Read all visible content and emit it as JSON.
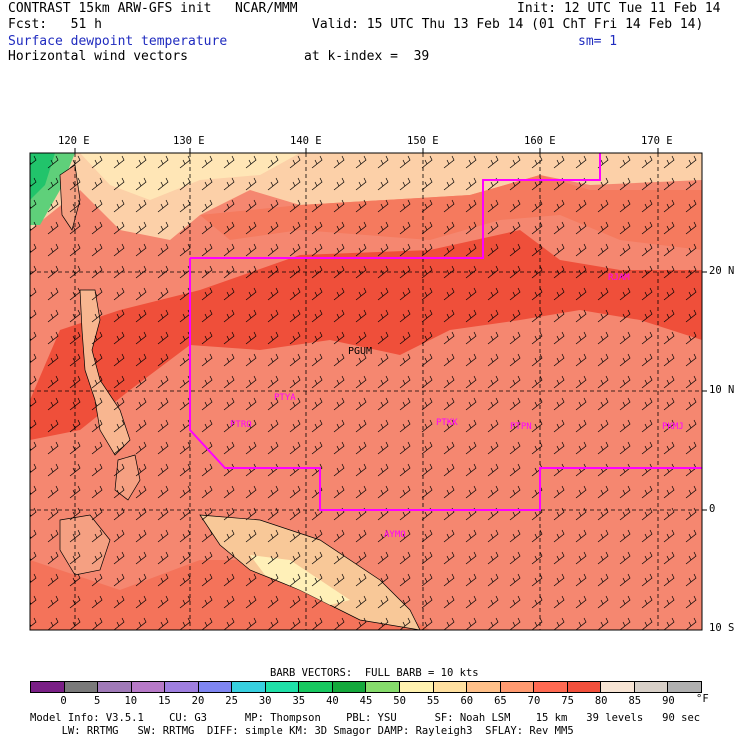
{
  "header": {
    "line1_left": "CONTRAST 15km ARW-GFS init   NCAR/MMM",
    "line1_right": "Init: 12 UTC Tue 11 Feb 14",
    "line2_left": "Fcst:   51 h",
    "line2_right": "Valid: 15 UTC Thu 13 Feb 14 (01 ChT Fri 14 Feb 14)",
    "line3_left": "Surface dewpoint temperature",
    "line3_right": "sm= 1",
    "line4_left": "Horizontal wind vectors",
    "line4_mid": "at k-index =  39"
  },
  "axes": {
    "lon_labels": [
      "120 E",
      "130 E",
      "140 E",
      "150 E",
      "160 E",
      "170 E"
    ],
    "lat_labels": [
      "20 N",
      "10 N",
      "0",
      "10 S"
    ]
  },
  "stations": [
    "RJAM",
    "PGUM",
    "PTYA",
    "PTRO",
    "PTKK",
    "PTPN",
    "PKMJ",
    "AYMO"
  ],
  "barb_caption": "BARB VECTORS:  FULL BARB = 10 kts",
  "colorbar": {
    "labels": [
      "0",
      "5",
      "10",
      "15",
      "20",
      "25",
      "30",
      "35",
      "40",
      "45",
      "50",
      "55",
      "60",
      "65",
      "70",
      "75",
      "80",
      "85",
      "90"
    ],
    "unit": "°F",
    "colors": [
      "#7a1f86",
      "#7a7a7a",
      "#a07ab8",
      "#b77ac8",
      "#9f7fe0",
      "#7f86f2",
      "#38d0e0",
      "#1fe0a8",
      "#18c860",
      "#14a83c",
      "#86dc6c",
      "#fff2b0",
      "#ffe0a0",
      "#ffc089",
      "#ff9a70",
      "#ff6a52",
      "#f2503c",
      "#f7e4d4",
      "#d8d0c8",
      "#b0b0b0"
    ]
  },
  "footer": {
    "line1": "Model Info: V3.5.1    CU: G3      MP: Thompson    PBL: YSU      SF: Noah LSM    15 km   39 levels   90 sec",
    "line2": "     LW: RRTMG   SW: RRTMG  DIFF: simple KM: 3D Smagor DAMP: Rayleigh3  SFLAY: Rev MM5"
  }
}
